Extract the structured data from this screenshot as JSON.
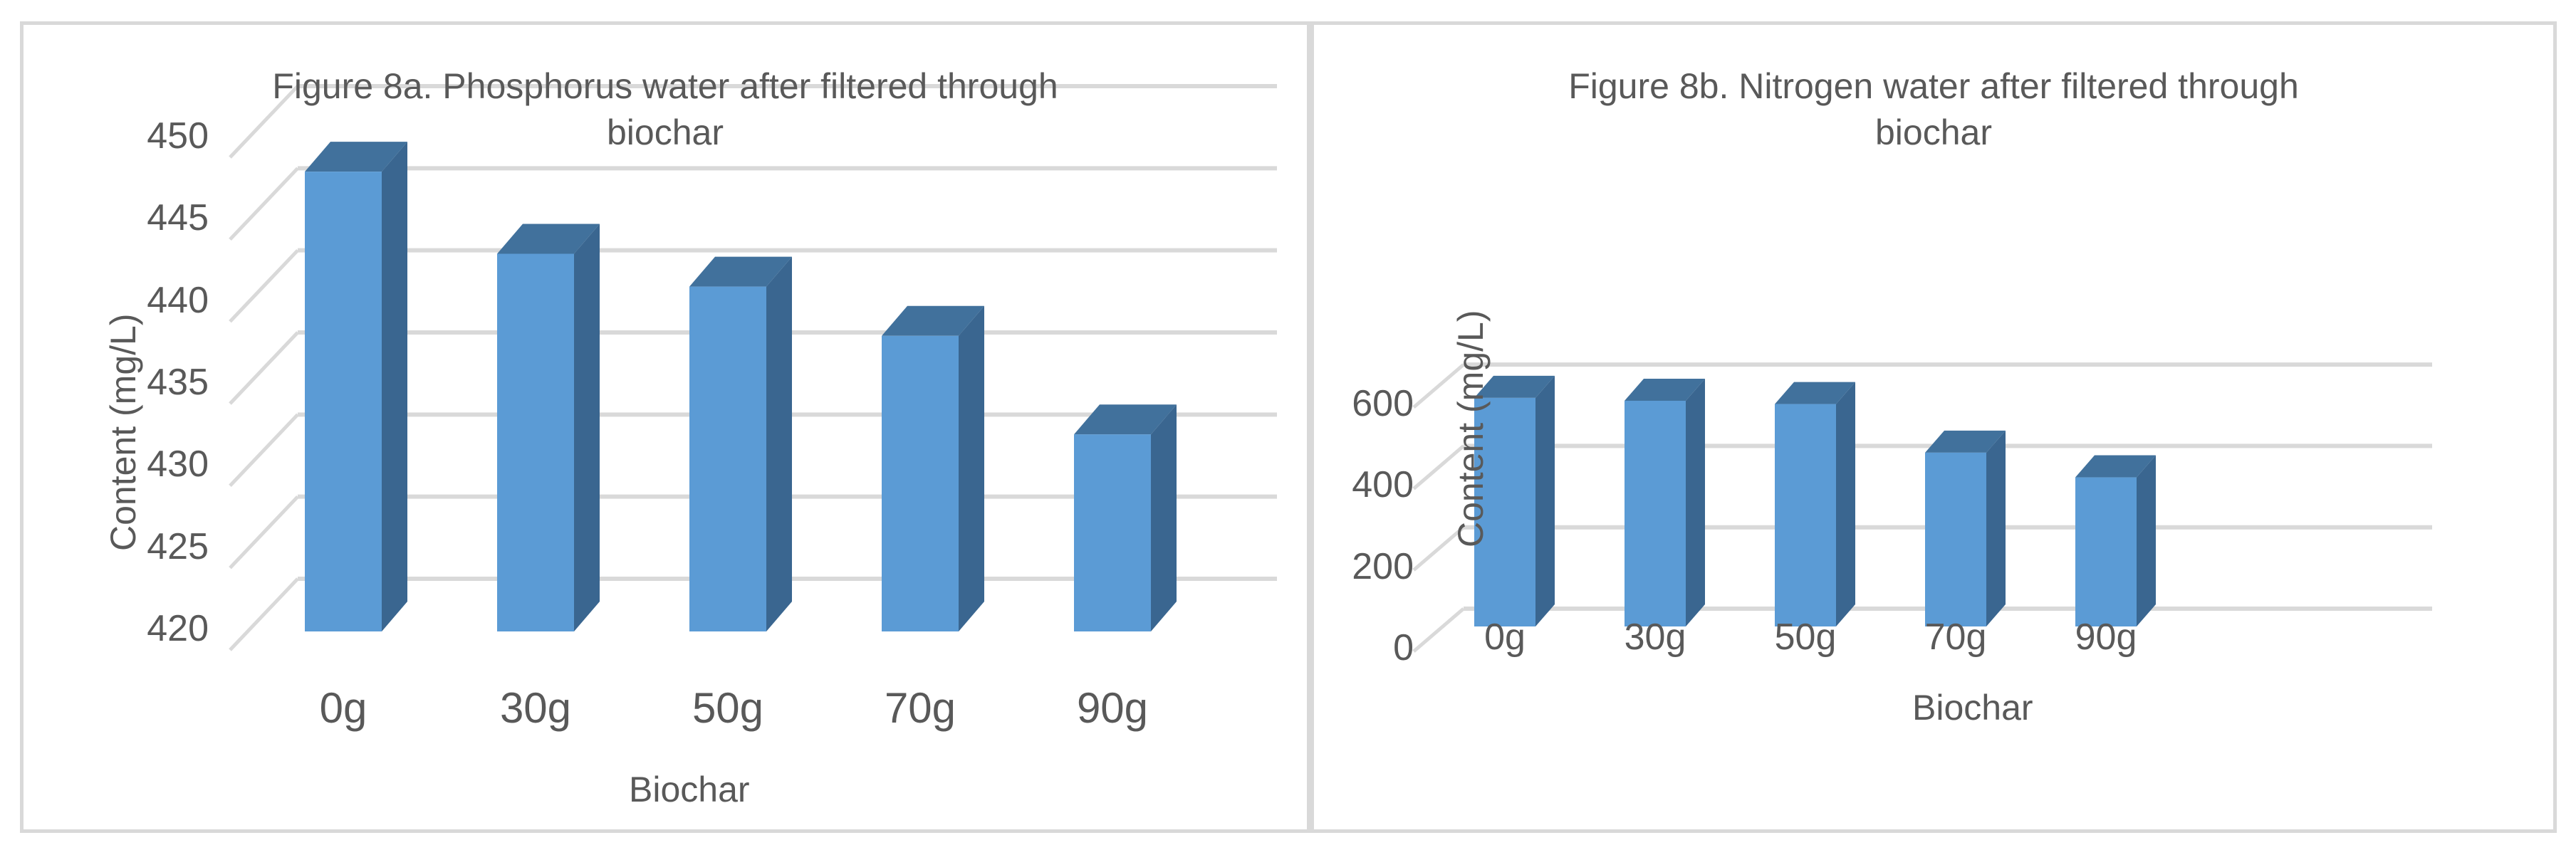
{
  "chart_data": [
    {
      "type": "bar",
      "style": "3d-column",
      "title": "Figure 8a. Phosphorus water after filtered through biochar",
      "title_lines": [
        "Figure 8a. Phosphorus water after filtered through",
        "biochar"
      ],
      "xlabel": "Biochar",
      "ylabel": "Content (mg/L)",
      "categories": [
        "0g",
        "30g",
        "50g",
        "70g",
        "90g"
      ],
      "values": [
        448,
        443,
        441,
        438,
        432
      ],
      "ylim": [
        420,
        450
      ],
      "yticks": [
        420,
        425,
        430,
        435,
        440,
        445,
        450
      ],
      "ytick_labels": [
        "420",
        "425",
        "430",
        "435",
        "440",
        "445",
        "450"
      ],
      "grid": true,
      "legend": null,
      "bar_color": "#5b9bd5",
      "bar_side_color": "#3a6690",
      "bar_top_color": "#41719c"
    },
    {
      "type": "bar",
      "style": "3d-column",
      "title": "Figure 8b. Nitrogen water after filtered through biochar",
      "title_lines": [
        "Figure 8b. Nitrogen water after filtered through",
        "biochar"
      ],
      "xlabel": "Biochar",
      "ylabel": "Content (mg/L)",
      "categories": [
        "0g",
        "30g",
        "50g",
        "70g",
        "90g"
      ],
      "values": [
        555,
        548,
        540,
        422,
        362
      ],
      "ylim": [
        0,
        700
      ],
      "yticks": [
        0,
        200,
        400,
        600
      ],
      "ytick_labels": [
        "0",
        "200",
        "400",
        "600"
      ],
      "grid": true,
      "legend": null,
      "bar_color": "#5b9bd5",
      "bar_side_color": "#3a6690",
      "bar_top_color": "#41719c"
    }
  ],
  "colors": {
    "gridline": "#d9d9d9",
    "text": "#595959",
    "border": "#d9d9d9"
  }
}
